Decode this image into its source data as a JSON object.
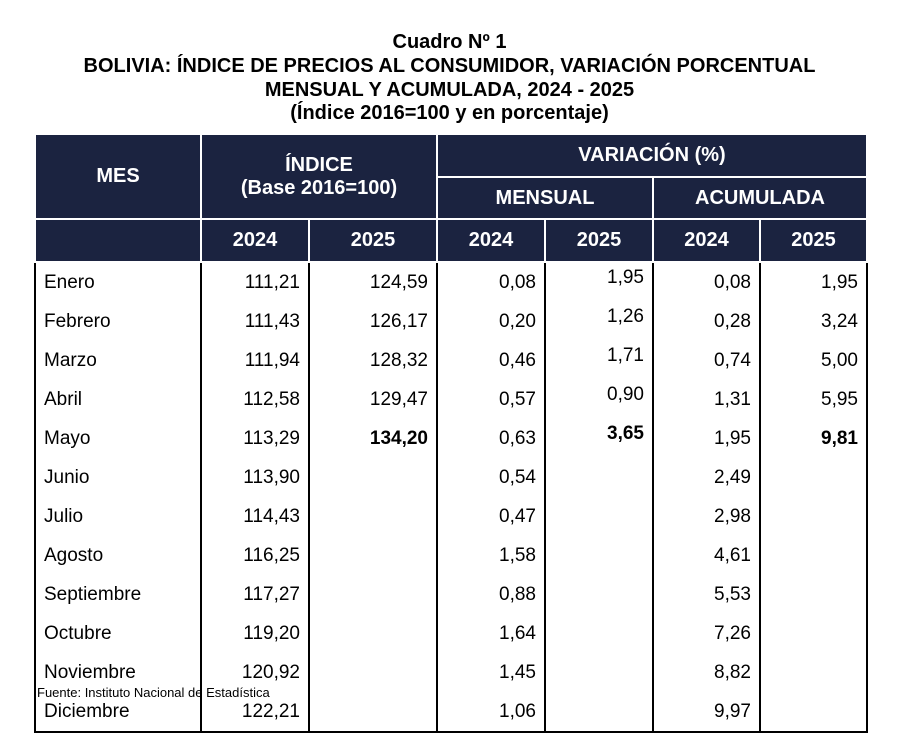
{
  "title": {
    "line1": "Cuadro Nº 1",
    "line2": "BOLIVIA: ÍNDICE DE PRECIOS AL CONSUMIDOR, VARIACIÓN PORCENTUAL",
    "line3": "MENSUAL Y ACUMULADA, 2024 - 2025",
    "line4": "(Índice 2016=100 y en porcentaje)"
  },
  "headers": {
    "mes": "MES",
    "indice": "ÍNDICE",
    "indice_base": "(Base 2016=100)",
    "variacion": "VARIACIÓN (%)",
    "mensual": "MENSUAL",
    "acumulada": "ACUMULADA",
    "years": [
      "2024",
      "2025",
      "2024",
      "2025",
      "2024",
      "2025"
    ]
  },
  "rows": [
    [
      "Enero",
      "111,21",
      "124,59",
      "0,08",
      "1,95",
      "0,08",
      "1,95"
    ],
    [
      "Febrero",
      "111,43",
      "126,17",
      "0,20",
      "1,26",
      "0,28",
      "3,24"
    ],
    [
      "Marzo",
      "111,94",
      "128,32",
      "0,46",
      "1,71",
      "0,74",
      "5,00"
    ],
    [
      "Abril",
      "112,58",
      "129,47",
      "0,57",
      "0,90",
      "1,31",
      "5,95"
    ],
    [
      "Mayo",
      "113,29",
      "134,20",
      "0,63",
      "3,65",
      "1,95",
      "9,81"
    ],
    [
      "Junio",
      "113,90",
      "",
      "0,54",
      "",
      "2,49",
      ""
    ],
    [
      "Julio",
      "114,43",
      "",
      "0,47",
      "",
      "2,98",
      ""
    ],
    [
      "Agosto",
      "116,25",
      "",
      "1,58",
      "",
      "4,61",
      ""
    ],
    [
      "Septiembre",
      "117,27",
      "",
      "0,88",
      "",
      "5,53",
      ""
    ],
    [
      "Octubre",
      "119,20",
      "",
      "1,64",
      "",
      "7,26",
      ""
    ],
    [
      "Noviembre",
      "120,92",
      "",
      "1,45",
      "",
      "8,82",
      ""
    ],
    [
      "Diciembre",
      "122,21",
      "",
      "1,06",
      "",
      "9,97",
      ""
    ]
  ],
  "source": "Fuente: Instituto Nacional de Estadística",
  "colors": {
    "header_bg": "#1b2340"
  }
}
